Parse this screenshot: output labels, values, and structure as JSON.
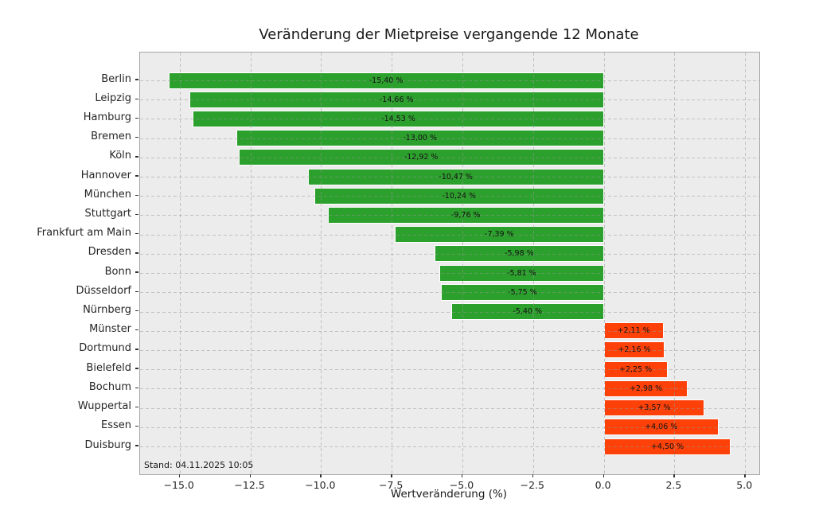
{
  "figure": {
    "title": "Veränderung der Mietpreise vergangende 12 Monate",
    "xlabel": "Wertveränderung (%)",
    "annotation": "Stand: 04.11.2025 10:05"
  },
  "chart_data": {
    "type": "bar",
    "orientation": "horizontal",
    "title": "Veränderung der Mietpreise vergangende 12 Monate",
    "xlabel": "Wertveränderung (%)",
    "ylabel": "",
    "categories": [
      "Berlin",
      "Leipzig",
      "Hamburg",
      "Bremen",
      "Köln",
      "Hannover",
      "München",
      "Stuttgart",
      "Frankfurt am Main",
      "Dresden",
      "Bonn",
      "Düsseldorf",
      "Nürnberg",
      "Münster",
      "Dortmund",
      "Bielefeld",
      "Bochum",
      "Wuppertal",
      "Essen",
      "Duisburg"
    ],
    "values": [
      -15.4,
      -14.66,
      -14.53,
      -13.0,
      -12.92,
      -10.47,
      -10.24,
      -9.76,
      -7.39,
      -5.98,
      -5.81,
      -5.75,
      -5.4,
      2.11,
      2.16,
      2.25,
      2.98,
      3.57,
      4.06,
      4.5
    ],
    "bar_labels": [
      "-15,40 %",
      "-14,66 %",
      "-14,53 %",
      "-13,00 %",
      "-12,92 %",
      "-10,47 %",
      "-10,24 %",
      "-9,76 %",
      "-7,39 %",
      "-5,98 %",
      "-5,81 %",
      "-5,75 %",
      "-5,40 %",
      "+2,11 %",
      "+2,16 %",
      "+2,25 %",
      "+2,98 %",
      "+3,57 %",
      "+4,06 %",
      "+4,50 %"
    ],
    "xlim": [
      -16.4,
      5.5
    ],
    "xticks": [
      -15.0,
      -12.5,
      -10.0,
      -7.5,
      -5.0,
      -2.5,
      0.0,
      2.5,
      5.0
    ],
    "xtick_labels": [
      "−15.0",
      "−12.5",
      "−10.0",
      "−7.5",
      "−5.0",
      "−2.5",
      "0.0",
      "2.5",
      "5.0"
    ],
    "grid": true,
    "legend": null,
    "annotation": "Stand: 04.11.2025 10:05",
    "colors": {
      "negative_bar": "#2ca02c",
      "positive_bar": "#fd4108",
      "panel_background": "#ececec",
      "gridline": "rgba(150,150,150,0.5)",
      "bar_edge": "#ffffff",
      "text": "#1a1a1a"
    }
  }
}
